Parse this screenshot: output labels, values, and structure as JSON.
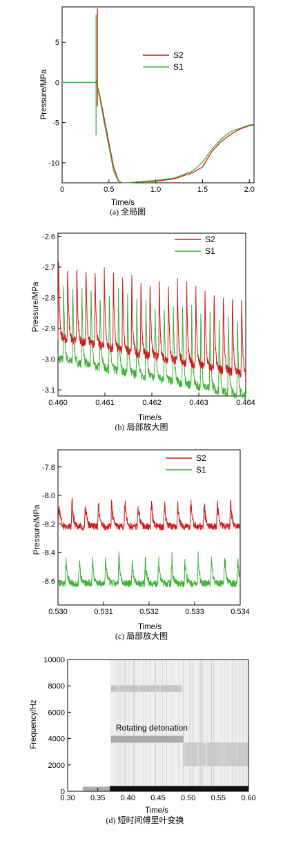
{
  "colors": {
    "s2": "#cc1a1a",
    "s1": "#3cb036",
    "axis": "#000000"
  },
  "chart_data": [
    {
      "id": "a",
      "type": "line",
      "caption": "(a) 全局图",
      "xlabel": "Time/s",
      "ylabel": "Pressure/MPa",
      "xlim": [
        0,
        2.05
      ],
      "ylim": [
        -12.5,
        9.4
      ],
      "xticks": [
        0,
        0.5,
        1.0,
        1.5,
        2.0
      ],
      "xtick_labels": [
        "0",
        "0.5",
        "1.0",
        "1.5",
        "2.0"
      ],
      "yticks": [
        5,
        0,
        -5,
        -10
      ],
      "ytick_labels": [
        "5",
        "0",
        "-5",
        "-10"
      ],
      "legend": {
        "position": "top-right",
        "entries": [
          "S2",
          "S1"
        ]
      },
      "series": [
        {
          "name": "S2",
          "color": "#cc1a1a",
          "x": [
            0,
            0.3,
            0.36,
            0.37,
            0.38,
            0.4,
            0.45,
            0.5,
            0.55,
            0.6,
            0.63,
            0.7,
            0.8,
            1.0,
            1.2,
            1.4,
            1.5,
            1.6,
            1.7,
            1.8,
            1.9,
            2.0,
            2.05
          ],
          "y": [
            0,
            0,
            0,
            0.2,
            -0.6,
            -1.5,
            -4.5,
            -7.5,
            -10.5,
            -12.2,
            -12.5,
            -12.5,
            -12.4,
            -12.3,
            -12.0,
            -11.2,
            -10.4,
            -8.7,
            -7.3,
            -6.4,
            -5.8,
            -5.4,
            -5.3
          ]
        },
        {
          "name": "S1",
          "color": "#3cb036",
          "x": [
            0,
            0.3,
            0.36,
            0.37,
            0.38,
            0.4,
            0.45,
            0.5,
            0.55,
            0.6,
            0.65,
            0.7,
            0.8,
            1.0,
            1.2,
            1.4,
            1.5,
            1.6,
            1.7,
            1.8,
            1.9,
            2.0,
            2.05
          ],
          "y": [
            0,
            0,
            0,
            0.3,
            -0.8,
            -1.8,
            -5.0,
            -8.0,
            -11.0,
            -12.3,
            -12.5,
            -12.5,
            -12.4,
            -12.2,
            -11.9,
            -11.0,
            -10.0,
            -8.3,
            -7.0,
            -6.2,
            -5.7,
            -5.3,
            -5.2
          ]
        }
      ]
    },
    {
      "id": "b",
      "type": "line",
      "caption": "(b) 局部放大图",
      "xlabel": "Time/s",
      "ylabel": "Pressure/MPa",
      "xlim": [
        0.46,
        0.464
      ],
      "ylim": [
        -3.12,
        -2.59
      ],
      "xticks": [
        0.46,
        0.461,
        0.462,
        0.463,
        0.464
      ],
      "xtick_labels": [
        "0.460",
        "0.461",
        "0.462",
        "0.463",
        "0.464"
      ],
      "yticks": [
        -2.6,
        -2.7,
        -2.8,
        -2.9,
        -3.0,
        -3.1
      ],
      "ytick_labels": [
        "-2.6",
        "-2.7",
        "-2.8",
        "-2.9",
        "-3.0",
        "-3.1"
      ],
      "legend": {
        "position": "top-right",
        "entries": [
          "S2",
          "S1"
        ]
      },
      "series": [
        {
          "name": "S2",
          "color": "#cc1a1a",
          "x": [
            0.46,
            0.4601,
            0.4602,
            0.4603,
            0.4604,
            0.4606,
            0.4608,
            0.461,
            0.4612,
            0.4614,
            0.4616,
            0.4618,
            0.462,
            0.4622,
            0.4624,
            0.4626,
            0.4628,
            0.463,
            0.4632,
            0.4634,
            0.4636,
            0.4638,
            0.464
          ],
          "y": [
            -2.9,
            -2.95,
            -2.7,
            -2.93,
            -2.66,
            -2.64,
            -2.66,
            -2.65,
            -2.66,
            -2.68,
            -2.7,
            -2.71,
            -2.72,
            -2.74,
            -2.74,
            -2.76,
            -2.77,
            -2.78,
            -2.79,
            -2.8,
            -2.82,
            -2.84,
            -3.05
          ]
        },
        {
          "name": "S1",
          "color": "#3cb036",
          "x": [
            0.46,
            0.4601,
            0.4602,
            0.4603,
            0.4604,
            0.4606,
            0.4608,
            0.461,
            0.4612,
            0.4614,
            0.4616,
            0.4618,
            0.462,
            0.4622,
            0.4624,
            0.4626,
            0.4628,
            0.463,
            0.4632,
            0.4634,
            0.4636,
            0.4638,
            0.464
          ],
          "y": [
            -2.98,
            -2.67,
            -3.0,
            -2.7,
            -3.01,
            -2.75,
            -2.76,
            -2.77,
            -2.78,
            -2.8,
            -2.82,
            -2.83,
            -2.85,
            -2.86,
            -2.87,
            -2.88,
            -2.9,
            -2.91,
            -2.92,
            -2.93,
            -2.95,
            -2.96,
            -3.09
          ]
        }
      ]
    },
    {
      "id": "c",
      "type": "line",
      "caption": "(c) 局部放大图",
      "xlabel": "Time/s",
      "ylabel": "Pressure/MPa",
      "xlim": [
        0.53,
        0.534
      ],
      "ylim": [
        -8.77,
        -7.68
      ],
      "xticks": [
        0.53,
        0.531,
        0.532,
        0.533,
        0.534
      ],
      "xtick_labels": [
        "0.530",
        "0.531",
        "0.532",
        "0.533",
        "0.534"
      ],
      "yticks": [
        -7.8,
        -8.0,
        -8.2,
        -8.4,
        -8.6
      ],
      "ytick_labels": [
        "-7.8",
        "-8.0",
        "-8.2",
        "-8.4",
        "-8.6"
      ],
      "legend": {
        "position": "top-right",
        "entries": [
          "S2",
          "S1"
        ]
      },
      "series": [
        {
          "name": "S2",
          "color": "#cc1a1a",
          "x": [
            0.53,
            0.5302,
            0.5304,
            0.5306,
            0.5308,
            0.531,
            0.5312,
            0.5314,
            0.5316,
            0.5318,
            0.532,
            0.5322,
            0.5324,
            0.5326,
            0.5328,
            0.533,
            0.5332,
            0.5334,
            0.5336,
            0.5338,
            0.534
          ],
          "y": [
            -8.05,
            -8.0,
            -8.2,
            -8.1,
            -8.22,
            -8.05,
            -8.2,
            -7.95,
            -8.2,
            -8.05,
            -8.1,
            -7.83,
            -8.15,
            -8.0,
            -8.15,
            -7.95,
            -8.2,
            -7.98,
            -8.22,
            -8.2,
            -8.3
          ]
        },
        {
          "name": "S1",
          "color": "#3cb036",
          "x": [
            0.53,
            0.5302,
            0.5304,
            0.5306,
            0.5308,
            0.531,
            0.5312,
            0.5314,
            0.5316,
            0.5318,
            0.532,
            0.5322,
            0.5324,
            0.5326,
            0.5328,
            0.533,
            0.5332,
            0.5334,
            0.5336,
            0.5338,
            0.534
          ],
          "y": [
            -8.5,
            -8.4,
            -8.62,
            -8.45,
            -8.62,
            -8.5,
            -8.65,
            -8.45,
            -8.6,
            -8.5,
            -8.63,
            -8.42,
            -8.62,
            -8.25,
            -8.6,
            -8.45,
            -8.68,
            -8.5,
            -8.7,
            -8.55,
            -8.73
          ]
        }
      ]
    },
    {
      "id": "d",
      "type": "heatmap",
      "caption": "(d) 短时间傅里叶变换",
      "xlabel": "Time/s",
      "ylabel": "Frequency/Hz",
      "xlim": [
        0.3,
        0.6
      ],
      "ylim": [
        0,
        10000
      ],
      "xticks": [
        0.3,
        0.35,
        0.4,
        0.45,
        0.5,
        0.55,
        0.6
      ],
      "xtick_labels": [
        "0.30",
        "0.35",
        "0.40",
        "0.45",
        "0.50",
        "0.55",
        "0.60"
      ],
      "yticks": [
        0,
        2000,
        4000,
        6000,
        8000,
        10000
      ],
      "ytick_labels": [
        "0",
        "2000",
        "4000",
        "6000",
        "8000",
        "10000"
      ],
      "annotation": "Rotating detonation",
      "bands": [
        {
          "x0": 0.325,
          "x1": 0.37,
          "f0": 0,
          "f1": 350,
          "intensity": 0.35
        },
        {
          "x0": 0.37,
          "x1": 0.6,
          "f0": 0,
          "f1": 400,
          "intensity": 1.0
        },
        {
          "x0": 0.372,
          "x1": 0.492,
          "f0": 3700,
          "f1": 4200,
          "intensity": 0.45
        },
        {
          "x0": 0.372,
          "x1": 0.49,
          "f0": 7550,
          "f1": 8050,
          "intensity": 0.25
        },
        {
          "x0": 0.492,
          "x1": 0.6,
          "f0": 1900,
          "f1": 3700,
          "intensity": 0.22
        },
        {
          "x0": 0.37,
          "x1": 0.6,
          "f0": 400,
          "f1": 10000,
          "intensity": 0.07
        }
      ]
    }
  ]
}
